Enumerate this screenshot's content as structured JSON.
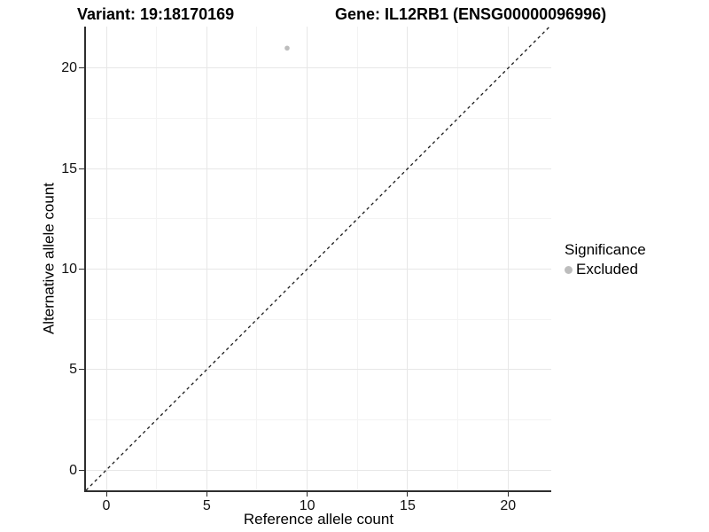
{
  "header": {
    "variant_title": "Variant: 19:18170169",
    "gene_title": "Gene: IL12RB1 (ENSG00000096996)"
  },
  "legend": {
    "title": "Significance",
    "items": [
      {
        "label": "Excluded",
        "color": "#bdbdbd"
      }
    ]
  },
  "chart_data": {
    "type": "scatter",
    "title": "Variant: 19:18170169  /  Gene: IL12RB1 (ENSG00000096996)",
    "xlabel": "Reference allele count",
    "ylabel": "Alternative allele count",
    "xlim": [
      -1.015,
      22.15
    ],
    "ylim": [
      -1.015,
      22.07
    ],
    "x_ticks": [
      0,
      5,
      10,
      15,
      20
    ],
    "y_ticks": [
      0,
      5,
      10,
      15,
      20
    ],
    "x_minor_gridlines": [
      2.5,
      7.5,
      12.5,
      17.5
    ],
    "y_minor_gridlines": [
      2.5,
      7.5,
      12.5,
      17.5
    ],
    "grid": true,
    "legend_position": "right",
    "series": [
      {
        "name": "Excluded",
        "points": [
          {
            "x": 9,
            "y": 21
          }
        ]
      }
    ],
    "reference_line": {
      "type": "identity",
      "slope": 1,
      "intercept": 0,
      "style": "dashed",
      "color": "#1a1a1a"
    },
    "colors": {
      "point_excluded": "#bdbdbd",
      "axis_line": "#2e2e2e",
      "grid_major": "#e7e7e7",
      "grid_minor": "#f3f3f3",
      "tick_label": "#111111"
    }
  }
}
